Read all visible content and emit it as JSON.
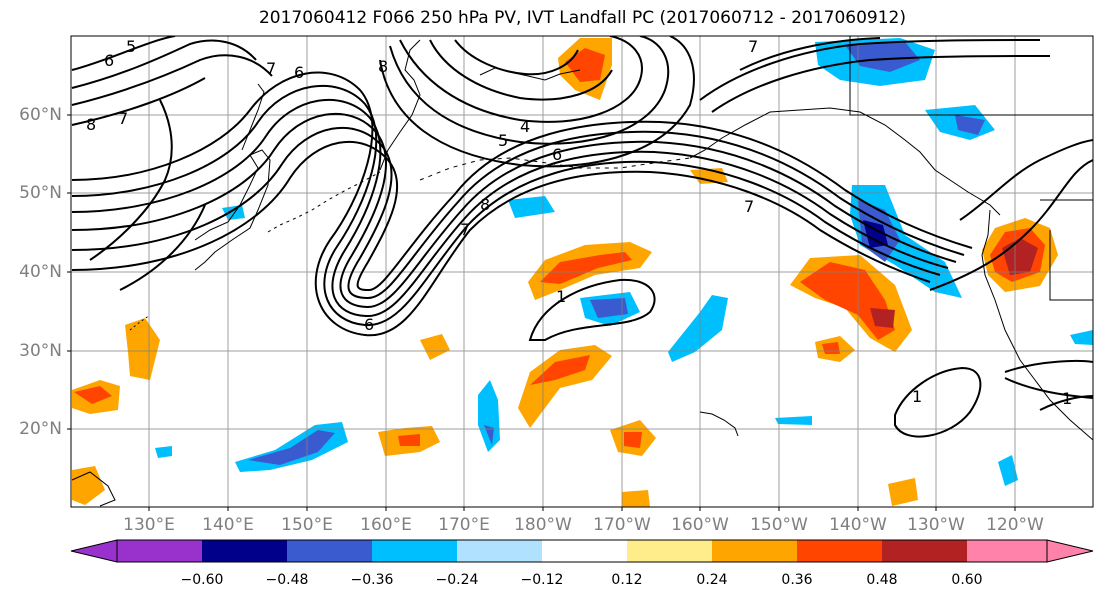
{
  "title": "2017060412 F066 250 hPa PV, IVT Landfall PC (2017060712 - 2017060912)",
  "lat_labels": [
    "60°N",
    "50°N",
    "40°N",
    "30°N",
    "20°N"
  ],
  "lon_labels": [
    "130°E",
    "140°E",
    "150°E",
    "160°E",
    "170°E",
    "180°W",
    "170°W",
    "160°W",
    "150°W",
    "140°W",
    "130°W",
    "120°W"
  ],
  "contour_labels": [
    "5",
    "6",
    "7",
    "8",
    "7",
    "6",
    "5",
    "4",
    "6",
    "8",
    "8",
    "7",
    "7",
    "6",
    "1",
    "1",
    "1",
    "7"
  ],
  "colorbar": {
    "ticks": [
      "−0.60",
      "−0.48",
      "−0.36",
      "−0.24",
      "−0.12",
      "0.12",
      "0.24",
      "0.36",
      "0.48",
      "0.60"
    ],
    "colors": [
      "#9932cc",
      "#00008b",
      "#3a5bd0",
      "#00bfff",
      "#b0e2ff",
      "#ffffff",
      "#ffec8b",
      "#ffa500",
      "#ff4500",
      "#b22222",
      "#ff82ab"
    ]
  },
  "colors": {
    "pv_contour": "#000000",
    "grid": "#808080",
    "coastline": "#000000",
    "axis_labels": "#7f7f7f"
  }
}
